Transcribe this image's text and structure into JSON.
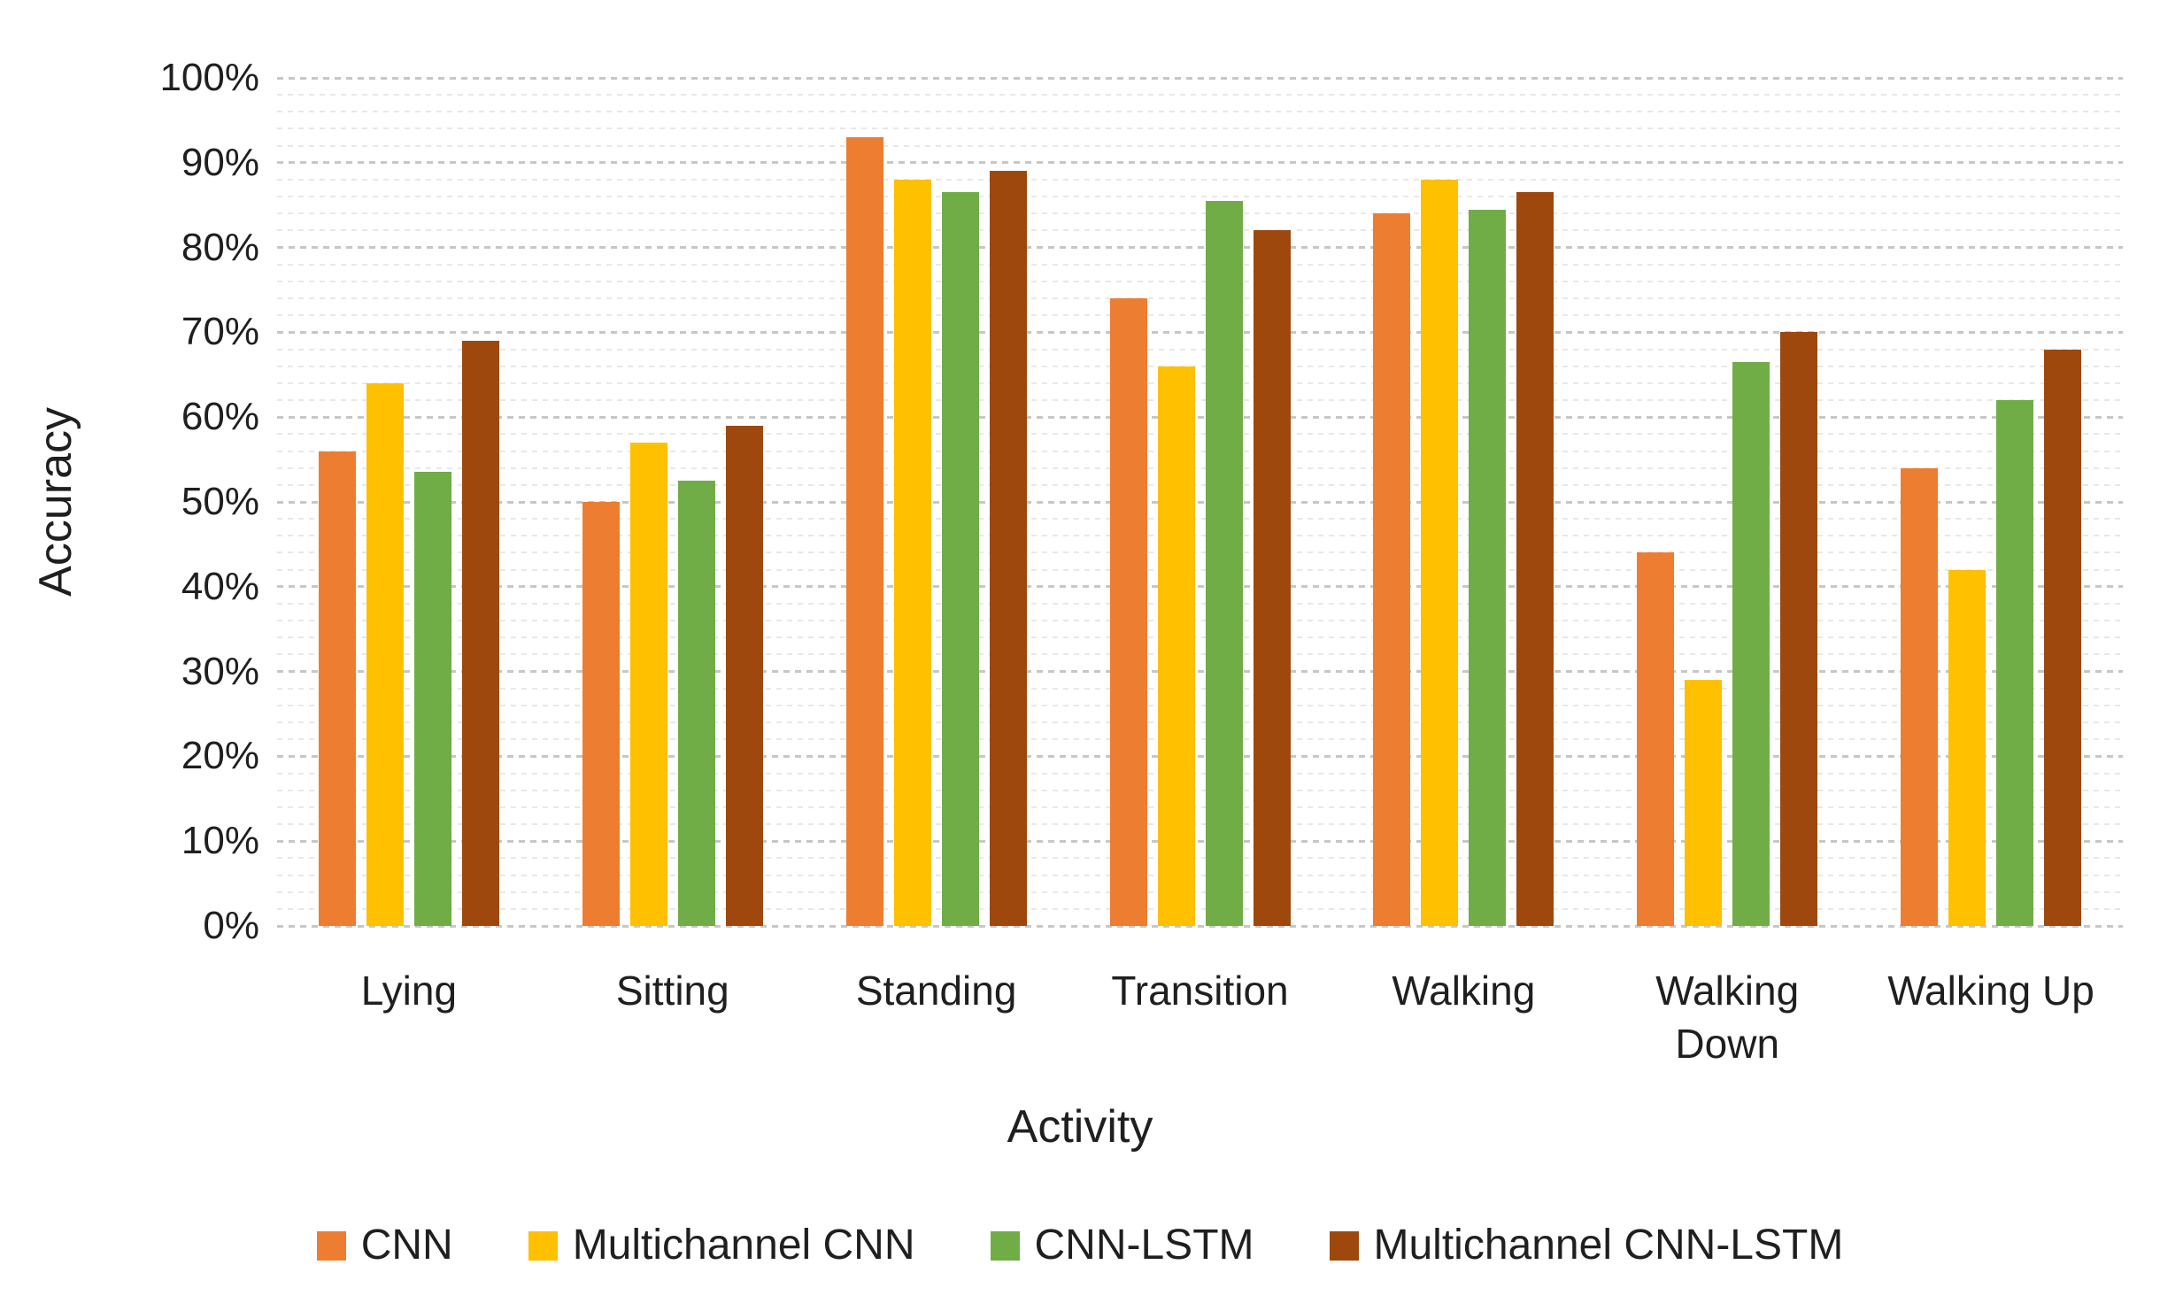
{
  "chart_data": {
    "type": "bar",
    "title": "",
    "xlabel": "Activity",
    "ylabel": "Accuracy",
    "ylim": [
      0,
      100
    ],
    "y_tick_step_percent": 10,
    "minor_gridline_step_percent": 2,
    "grid": "horizontal dotted, minor every 2%, major every 10%",
    "legend_position": "bottom",
    "y_ticks": [
      "0%",
      "10%",
      "20%",
      "30%",
      "40%",
      "50%",
      "60%",
      "70%",
      "80%",
      "90%",
      "100%"
    ],
    "categories": [
      "Lying",
      "Sitting",
      "Standing",
      "Transition",
      "Walking",
      "Walking\nDown",
      "Walking Up"
    ],
    "series": [
      {
        "name": "CNN",
        "color": "#ED7D31",
        "values": [
          56,
          50,
          93,
          74,
          84,
          44,
          54
        ]
      },
      {
        "name": "Multichannel CNN",
        "color": "#FFC000",
        "values": [
          64,
          57,
          88,
          66,
          88,
          29,
          42
        ]
      },
      {
        "name": "CNN-LSTM",
        "color": "#70AD47",
        "values": [
          53.5,
          52.5,
          86.5,
          85.5,
          84.5,
          66.5,
          62
        ]
      },
      {
        "name": "Multichannel CNN-LSTM",
        "color": "#9E480E",
        "values": [
          69,
          59,
          89,
          82,
          86.5,
          70,
          68
        ]
      }
    ]
  }
}
